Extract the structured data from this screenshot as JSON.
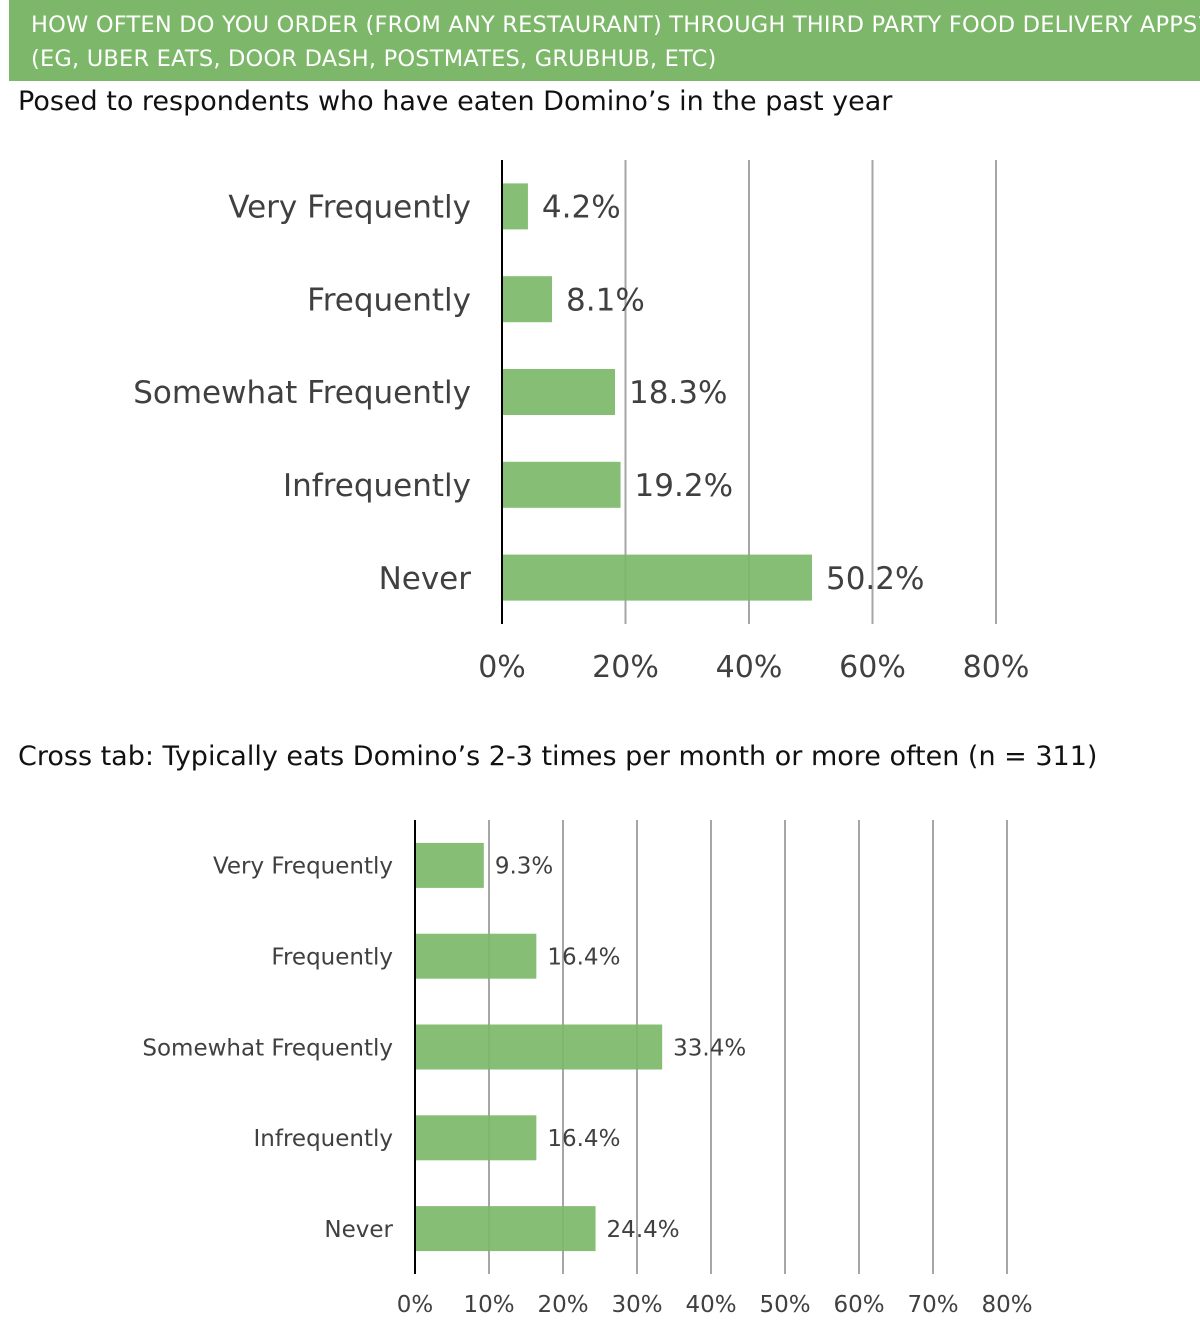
{
  "header": {
    "line1": "HOW OFTEN DO YOU ORDER (FROM ANY RESTAURANT) THROUGH THIRD PARTY FOOD DELIVERY APPS?",
    "line2": "(EG, UBER EATS, DOOR DASH, POSTMATES, GRUBHUB, ETC)"
  },
  "colors": {
    "banner": "#7db86a",
    "bar": "#7db86a",
    "grid": "#a6a6a6",
    "axis": "#000000"
  },
  "chart_data": [
    {
      "type": "bar",
      "orientation": "horizontal",
      "title": "Posed to respondents who have eaten Domino’s in the past year",
      "categories": [
        "Very Frequently",
        "Frequently",
        "Somewhat Frequently",
        "Infrequently",
        "Never"
      ],
      "values": [
        4.2,
        8.1,
        18.3,
        19.2,
        50.2
      ],
      "data_labels": [
        "4.2%",
        "8.1%",
        "18.3%",
        "19.2%",
        "50.2%"
      ],
      "x_ticks": [
        "0%",
        "20%",
        "40%",
        "60%",
        "80%"
      ],
      "xlim": [
        0,
        80
      ],
      "grid": true
    },
    {
      "type": "bar",
      "orientation": "horizontal",
      "title": "Cross tab: Typically eats Domino’s 2-3 times per month or more often (n = 311)",
      "categories": [
        "Very Frequently",
        "Frequently",
        "Somewhat Frequently",
        "Infrequently",
        "Never"
      ],
      "values": [
        9.3,
        16.4,
        33.4,
        16.4,
        24.4
      ],
      "data_labels": [
        "9.3%",
        "16.4%",
        "33.4%",
        "16.4%",
        "24.4%"
      ],
      "x_ticks": [
        "0%",
        "10%",
        "20%",
        "30%",
        "40%",
        "50%",
        "60%",
        "70%",
        "80%"
      ],
      "xlim": [
        0,
        80
      ],
      "grid": true
    }
  ]
}
